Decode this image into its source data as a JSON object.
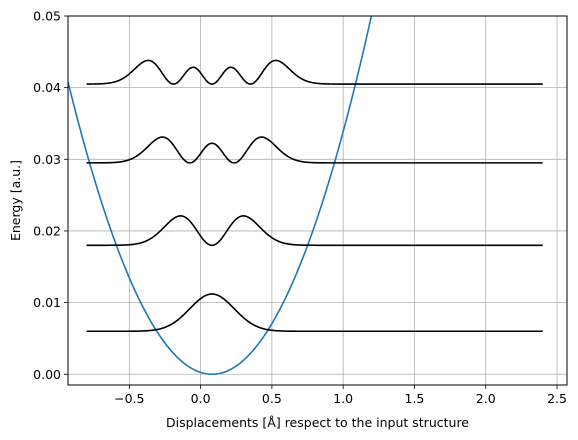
{
  "chart_data": {
    "type": "line",
    "title": "",
    "xlabel": "Displacements [Å] respect to the input structure",
    "ylabel": "Energy [a.u.]",
    "xlim": [
      -0.93,
      2.57
    ],
    "ylim": [
      -0.0015,
      0.05
    ],
    "grid": true,
    "legend": "none",
    "x_ticks": [
      -0.5,
      0.0,
      0.5,
      1.0,
      1.5,
      2.0,
      2.5
    ],
    "x_tick_labels": [
      "−0.5",
      "0.0",
      "0.5",
      "1.0",
      "1.5",
      "2.0",
      "2.5"
    ],
    "y_ticks": [
      0.0,
      0.01,
      0.02,
      0.03,
      0.04,
      0.05
    ],
    "y_tick_labels": [
      "0.00",
      "0.01",
      "0.02",
      "0.03",
      "0.04",
      "0.05"
    ],
    "colors": {
      "potential": "#1f77b4",
      "wavefunction": "#000000",
      "grid": "#b0b0b0",
      "axes": "#000000"
    },
    "potential": {
      "form": "parabola",
      "x_min": 0.08,
      "curvature": 0.04,
      "x_range": [
        -0.93,
        2.57
      ]
    },
    "wavefunction_x_range": [
      -0.8,
      2.4
    ],
    "wavefunctions": [
      {
        "level": 0,
        "energy": 0.006,
        "amplitude": 0.0052
      },
      {
        "level": 1,
        "energy": 0.018,
        "amplitude": 0.0041
      },
      {
        "level": 2,
        "energy": 0.0295,
        "amplitude": 0.0036
      },
      {
        "level": 3,
        "energy": 0.0405,
        "amplitude": 0.0033
      }
    ]
  }
}
